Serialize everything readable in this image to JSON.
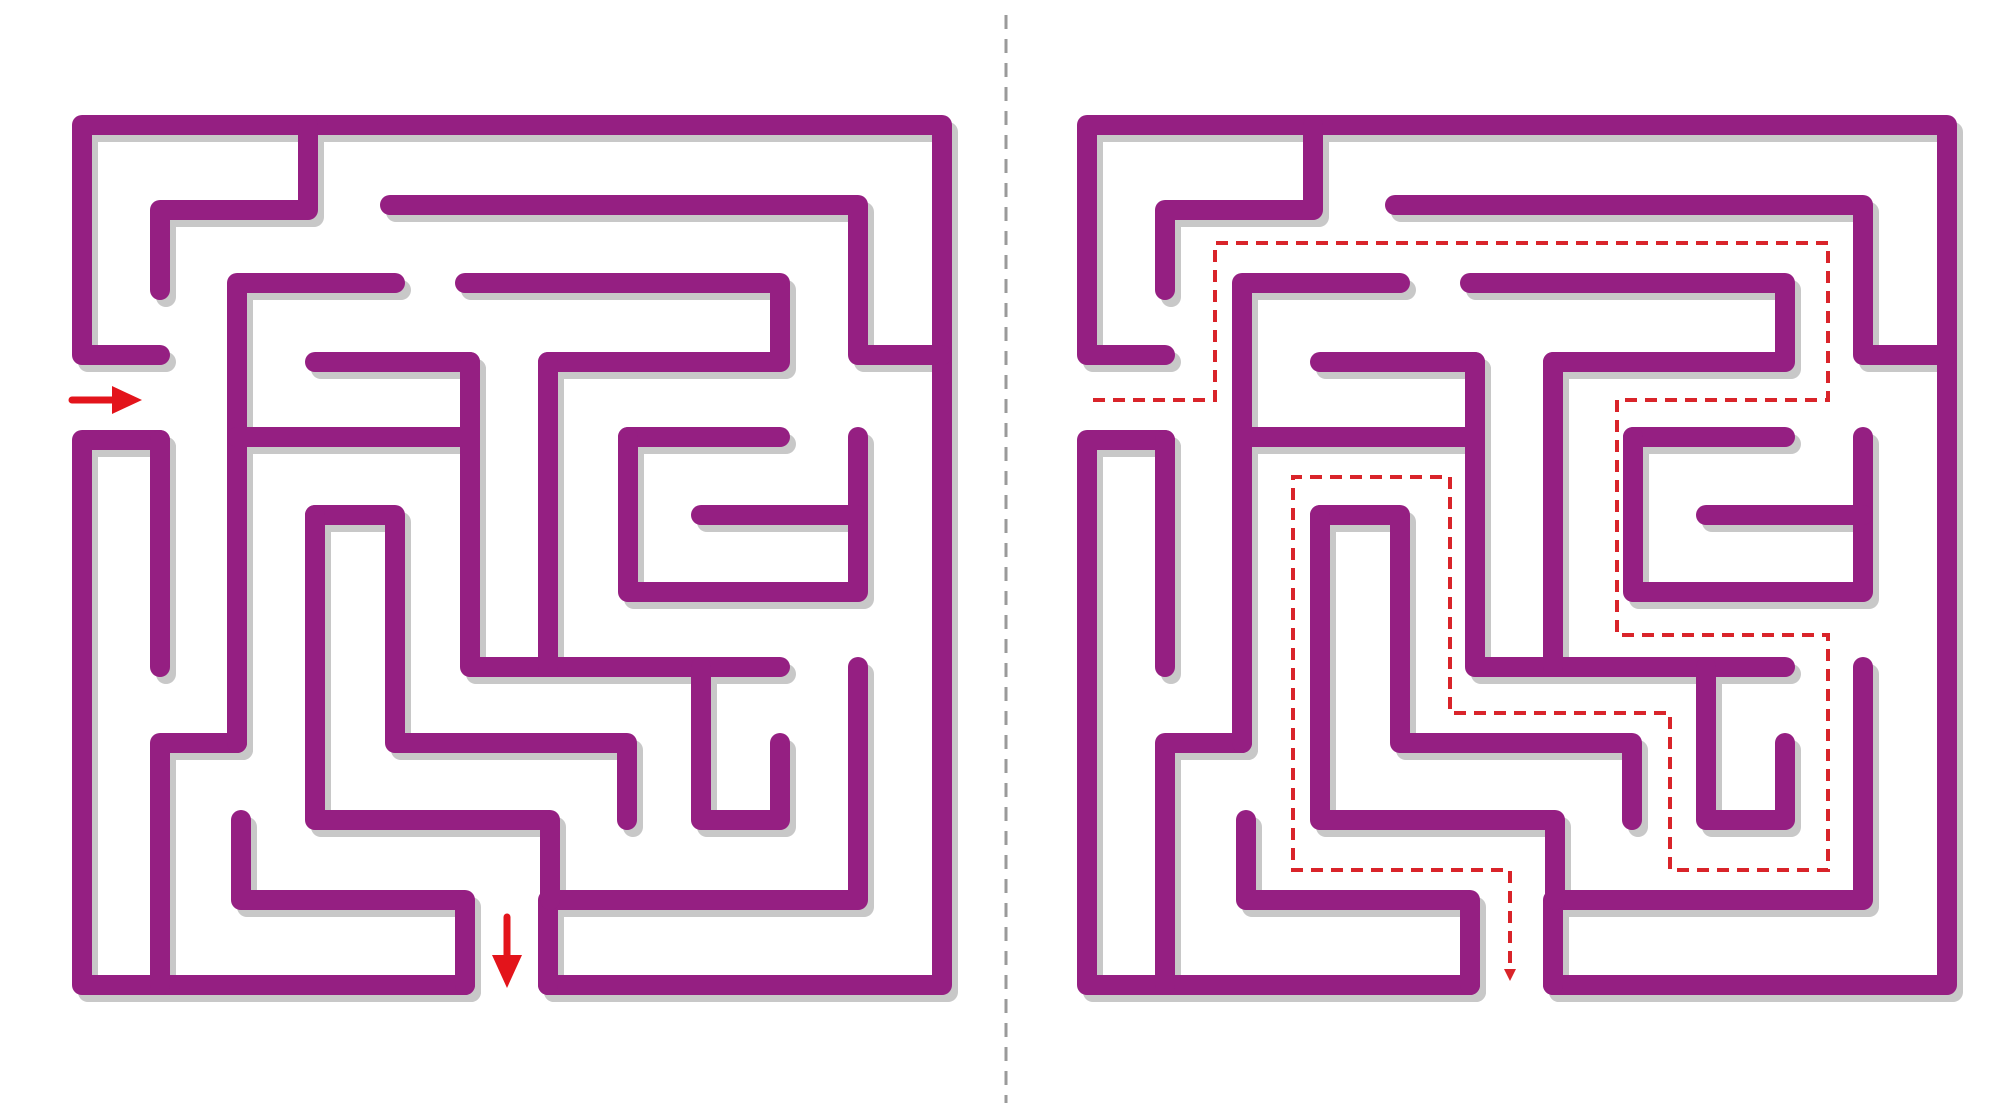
{
  "colors": {
    "background": "#ffffff",
    "wall": "#951f82",
    "shadow": "#c8c8c8",
    "arrow": "#e3141b",
    "solution": "#d9242a",
    "divider": "#9a9a9a"
  },
  "mazes": [
    {
      "id": "unsolved",
      "show_solution": false
    },
    {
      "id": "solved",
      "show_solution": true
    }
  ],
  "icons": {
    "entry": "right-arrow-icon",
    "exit": "down-arrow-icon"
  }
}
